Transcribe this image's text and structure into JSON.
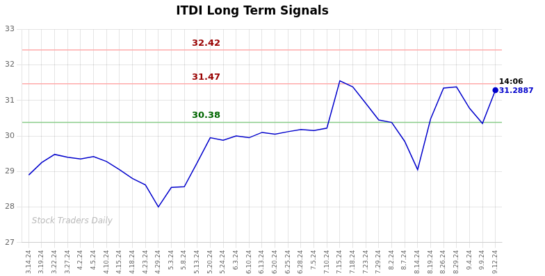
{
  "chart_data": {
    "type": "line",
    "title": "ITDI Long Term Signals",
    "categories": [
      "3.14.24",
      "3.19.24",
      "3.22.24",
      "3.27.24",
      "4.2.24",
      "4.5.24",
      "4.10.24",
      "4.15.24",
      "4.18.24",
      "4.23.24",
      "4.29.24",
      "5.3.24",
      "5.8.24",
      "5.13.24",
      "5.20.24",
      "5.24.24",
      "6.3.24",
      "6.10.24",
      "6.13.24",
      "6.20.24",
      "6.25.24",
      "6.28.24",
      "7.5.24",
      "7.10.24",
      "7.15.24",
      "7.18.24",
      "7.23.24",
      "7.29.24",
      "8.2.24",
      "8.7.24",
      "8.14.24",
      "8.19.24",
      "8.26.24",
      "8.29.24",
      "9.4.24",
      "9.9.24",
      "9.12.24"
    ],
    "values": [
      28.9,
      29.25,
      29.48,
      29.4,
      29.35,
      29.42,
      29.28,
      29.05,
      28.8,
      28.62,
      28.0,
      28.55,
      28.57,
      29.25,
      29.95,
      29.88,
      30.0,
      29.95,
      30.1,
      30.05,
      30.12,
      30.18,
      30.15,
      30.22,
      31.55,
      31.38,
      30.92,
      30.45,
      30.38,
      29.85,
      29.05,
      30.48,
      31.35,
      31.38,
      30.78,
      30.35,
      31.2887
    ],
    "color": "#0000cc",
    "ylim": [
      27,
      33
    ],
    "yticks": [
      27,
      28,
      29,
      30,
      31,
      32,
      33
    ],
    "grid": true,
    "reference_lines": [
      {
        "value": 32.42,
        "color": "#ffaaaa",
        "label": "32.42",
        "label_color": "#990000"
      },
      {
        "value": 31.47,
        "color": "#ffaaaa",
        "label": "31.47",
        "label_color": "#990000"
      },
      {
        "value": 30.38,
        "color": "#88cc88",
        "label": "30.38",
        "label_color": "#006600"
      }
    ],
    "annotations": [
      {
        "text": "14:06",
        "color": "#000000"
      },
      {
        "text": "31.2887",
        "color": "#0000cc"
      }
    ],
    "watermark": "Stock Traders Daily"
  }
}
